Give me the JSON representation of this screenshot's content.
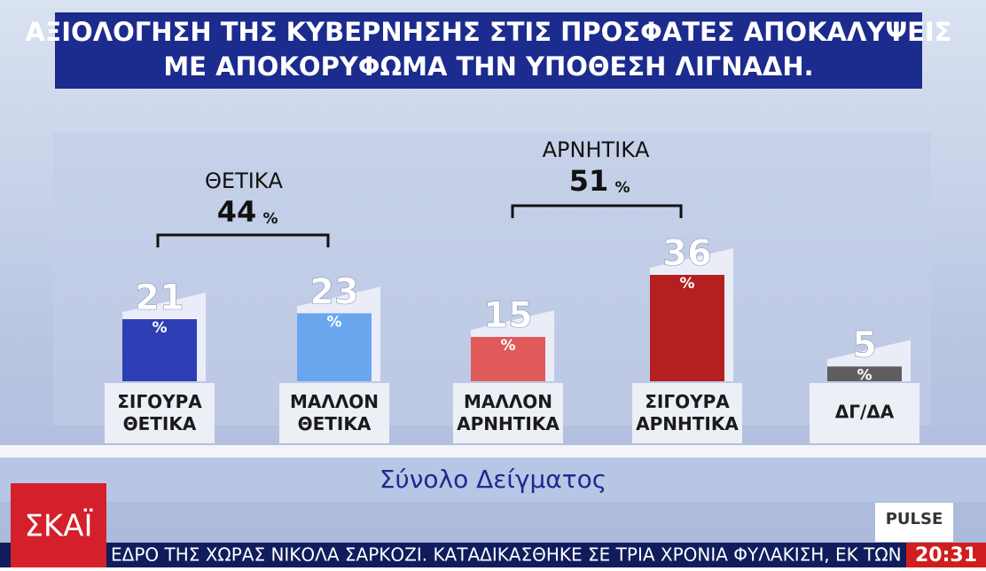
{
  "chart_data": {
    "type": "bar",
    "title_lines": [
      "ΑΞΙΟΛΟΓΗΣΗ ΤΗΣ ΚΥΒΕΡΝΗΣΗΣ ΣΤΙΣ ΠΡΟΣΦΑΤΕΣ ΑΠΟΚΑΛΥΨΕΙΣ",
      "ΜΕ ΑΠΟΚΟΡΥΦΩΜΑ ΤΗΝ ΥΠΟΘΕΣΗ ΛΙΓΝΑΔΗ."
    ],
    "categories": [
      "ΣΙΓΟΥΡΑ ΘΕΤΙΚΑ",
      "ΜΑΛΛΟΝ ΘΕΤΙΚΑ",
      "ΜΑΛΛΟΝ ΑΡΝΗΤΙΚΑ",
      "ΣΙΓΟΥΡΑ ΑΡΝΗΤΙΚΑ",
      "ΔΓ/ΔΑ"
    ],
    "values": [
      21,
      23,
      15,
      36,
      5
    ],
    "colors": [
      "#2c3fb5",
      "#6aa6ee",
      "#e05a5a",
      "#b51f1f",
      "#5e5e5e"
    ],
    "unit": "%",
    "groups": [
      {
        "label": "ΘΕΤΙΚΑ",
        "value": 44
      },
      {
        "label": "ΑΡΝΗΤΙΚΑ",
        "value": 51
      }
    ],
    "subtitle": "Σύνολο Δείγματος"
  },
  "broadcast": {
    "logo": "ΣΚΑΪ",
    "pollster": "PULSE",
    "ticker": "ΕΔΡΟ ΤΗΣ ΧΩΡΑΣ ΝΙΚΟΛΑ ΣΑΡΚΟΖΙ. ΚΑΤΑΔΙΚΑΣΘΗΚΕ ΣΕ ΤΡΙΑ ΧΡΟΝΙΑ ΦΥΛΑΚΙΣΗ, ΕΚ ΤΩΝ ΟΠΟΙΩΝ",
    "time": "20:31"
  }
}
